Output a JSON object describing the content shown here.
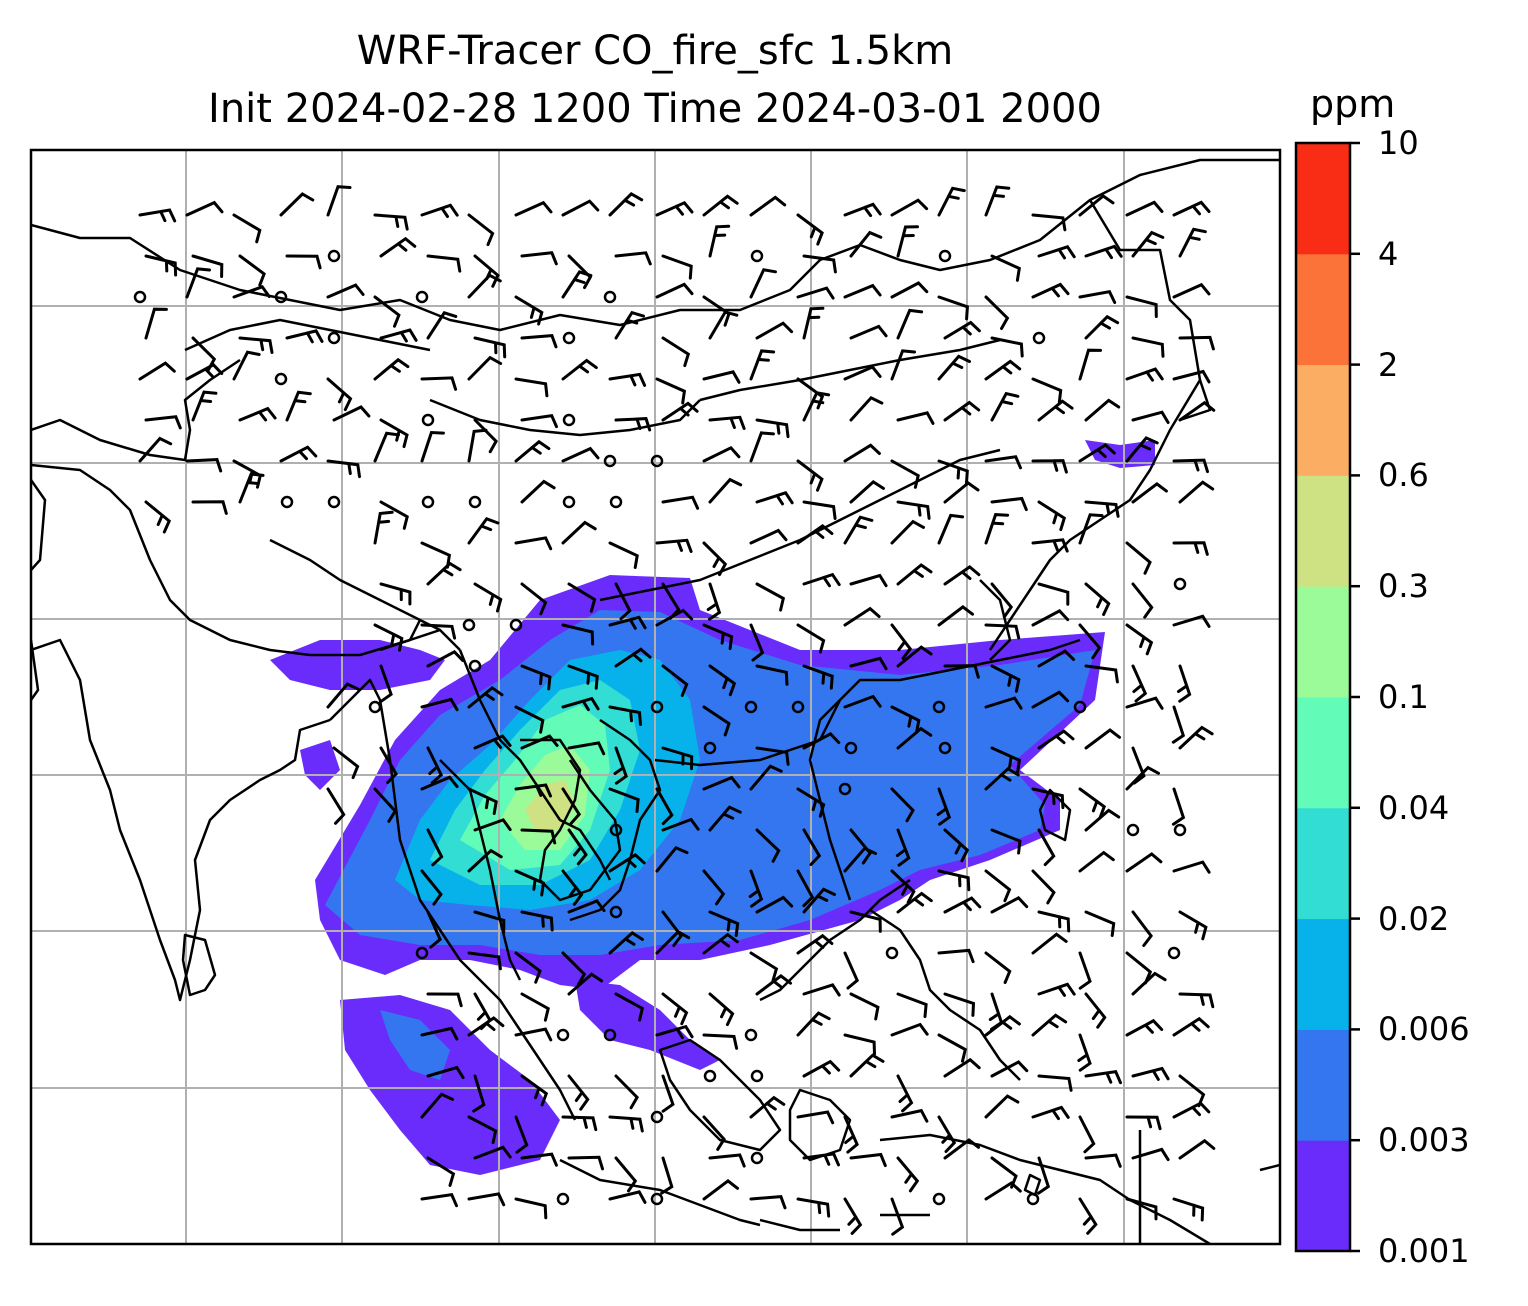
{
  "title": {
    "line1": "WRF-Tracer CO_fire_sfc 1.5km",
    "line2": "Init 2024-02-28 1200 Time 2024-03-01 2000"
  },
  "colorbar": {
    "units": "ppm",
    "levels": [
      "0.001",
      "0.003",
      "0.006",
      "0.02",
      "0.04",
      "0.1",
      "0.3",
      "0.6",
      "2",
      "4",
      "10"
    ],
    "colors": [
      "#6a2cfb",
      "#3476f0",
      "#07b2ea",
      "#32ddd4",
      "#63fbb8",
      "#9bfb98",
      "#cfe283",
      "#fbae63",
      "#fb7338",
      "#f92d15"
    ]
  },
  "map": {
    "gridlines": true,
    "gridline_color": "#b0b0b0",
    "coastline_color": "#000000",
    "features": [
      "coastlines",
      "country-borders",
      "wind-barbs",
      "calm-circles",
      "tracer-concentration"
    ]
  }
}
